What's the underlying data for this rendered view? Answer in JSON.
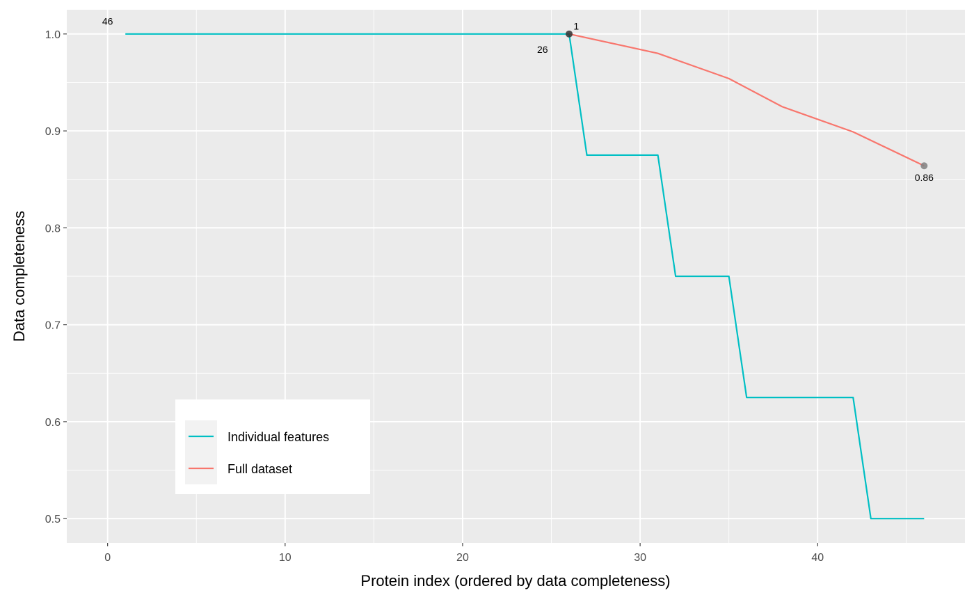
{
  "chart_data": {
    "type": "line",
    "title": "",
    "xlabel": "Protein index (ordered by data completeness)",
    "ylabel": "Data completeness",
    "xlim": [
      -2.3,
      48.3
    ],
    "ylim": [
      0.475,
      1.025
    ],
    "x_ticks": [
      0,
      10,
      20,
      30,
      40
    ],
    "y_ticks": [
      0.5,
      0.6,
      0.7,
      0.8,
      0.9,
      1.0
    ],
    "x_tick_labels": [
      "0",
      "10",
      "20",
      "30",
      "40"
    ],
    "y_tick_labels": [
      "0.5",
      "0.6",
      "0.7",
      "0.8",
      "0.9",
      "1.0"
    ],
    "grid": true,
    "legend_position": "bottom-left",
    "series": [
      {
        "name": "Individual features",
        "color": "#00BFC4",
        "x": [
          1,
          26,
          27,
          31,
          32,
          35,
          36,
          42,
          43,
          46
        ],
        "y": [
          1.0,
          1.0,
          0.875,
          0.875,
          0.75,
          0.75,
          0.625,
          0.625,
          0.5,
          0.5
        ]
      },
      {
        "name": "Full dataset",
        "color": "#F8766D",
        "x": [
          26,
          31,
          35,
          38,
          42,
          46
        ],
        "y": [
          1.0,
          0.98,
          0.954,
          0.925,
          0.899,
          0.864
        ]
      }
    ],
    "points": [
      {
        "x": 26,
        "y": 1.0,
        "color": "#333333"
      },
      {
        "x": 46,
        "y": 0.864,
        "color": "#808080"
      }
    ],
    "annotations": [
      {
        "text": "46",
        "x": 0,
        "y": 1.013,
        "color": "#999999"
      },
      {
        "text": "1",
        "x": 26.4,
        "y": 1.008,
        "color": "#000000"
      },
      {
        "text": "26",
        "x": 24.5,
        "y": 0.984,
        "color": "#000000"
      },
      {
        "text": "0.86",
        "x": 46,
        "y": 0.852,
        "color": "#000000"
      }
    ]
  }
}
